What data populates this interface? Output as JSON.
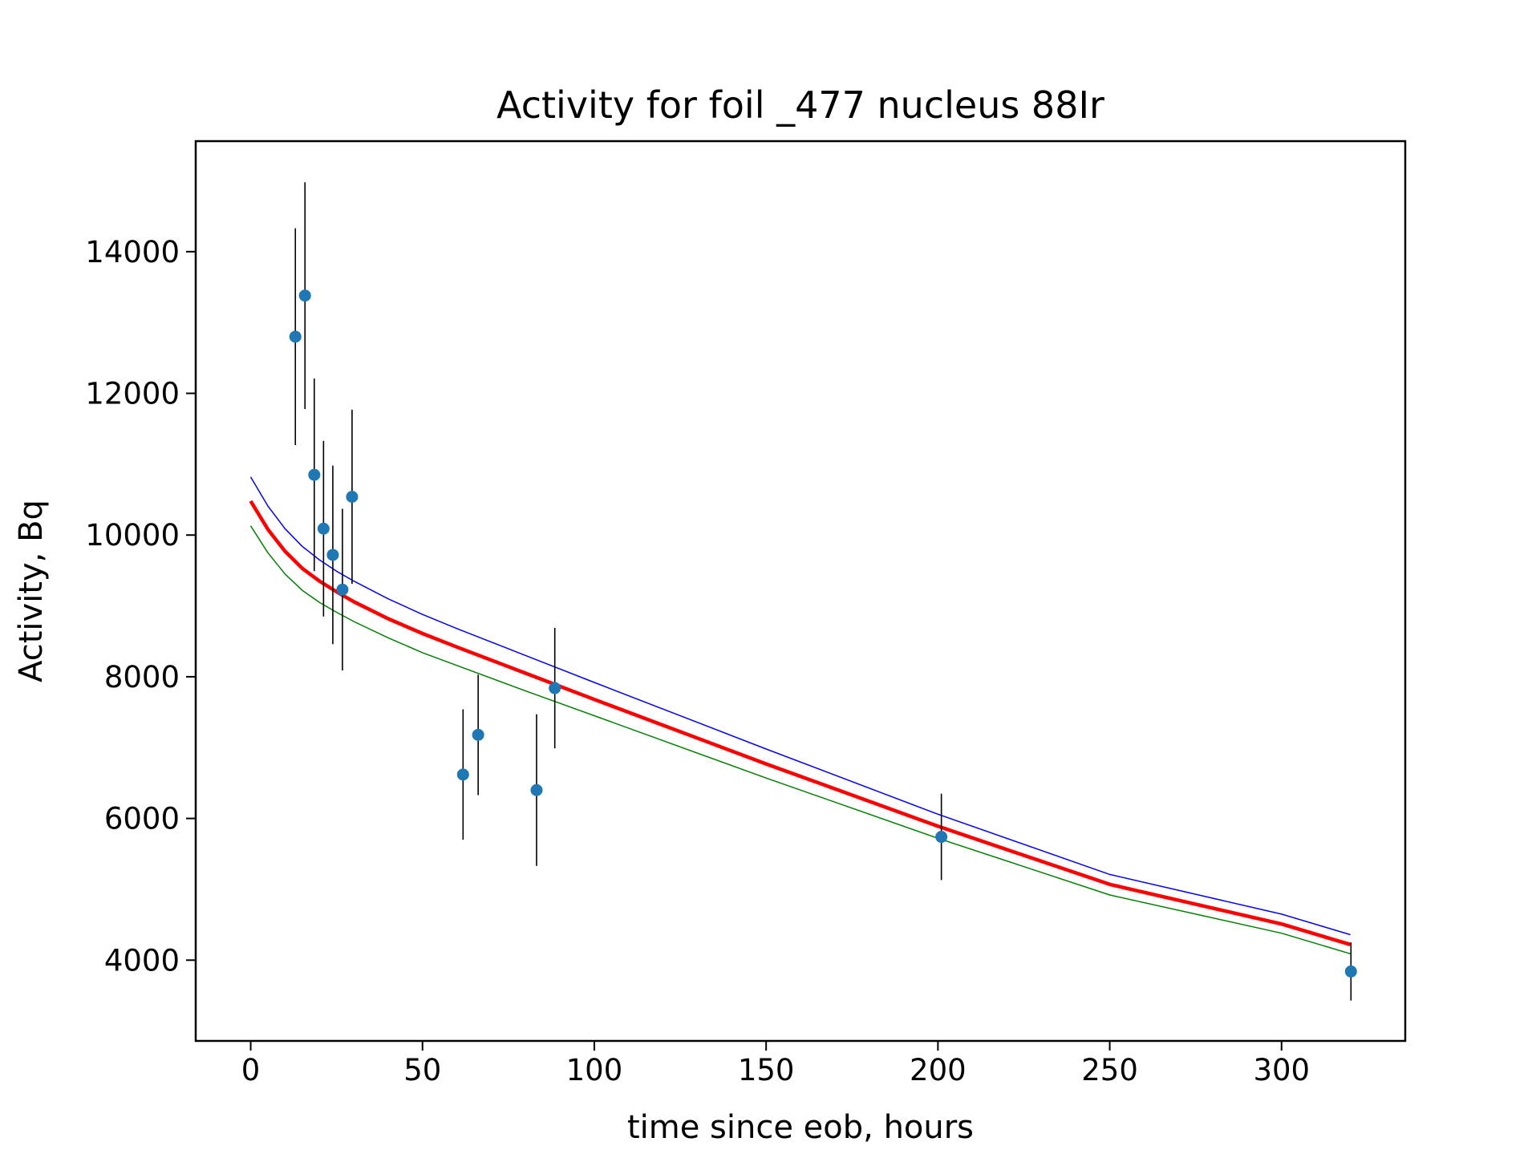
{
  "chart_data": {
    "type": "scatter",
    "title": "Activity for foil _477 nucleus 88Ir",
    "xlabel": "time since eob, hours",
    "ylabel": "Activity, Bq",
    "xlim": [
      -16,
      336
    ],
    "ylim": [
      2860,
      15560
    ],
    "xticks": [
      0,
      50,
      100,
      150,
      200,
      250,
      300
    ],
    "yticks": [
      4000,
      6000,
      8000,
      10000,
      12000,
      14000
    ],
    "grid": false,
    "legend": "none",
    "colors": {
      "points": "#1f77b4",
      "errorbars": "#000000",
      "fit": "#ff0000",
      "upper": "#0000ff",
      "lower": "#008000"
    },
    "points": [
      {
        "x": 13.0,
        "y": 12800,
        "err": 1530
      },
      {
        "x": 15.8,
        "y": 13380,
        "err": 1600
      },
      {
        "x": 18.5,
        "y": 10850,
        "err": 1360
      },
      {
        "x": 21.2,
        "y": 10090,
        "err": 1240
      },
      {
        "x": 23.9,
        "y": 9720,
        "err": 1260
      },
      {
        "x": 26.7,
        "y": 9230,
        "err": 1140
      },
      {
        "x": 29.5,
        "y": 10540,
        "err": 1230
      },
      {
        "x": 61.8,
        "y": 6620,
        "err": 920
      },
      {
        "x": 66.2,
        "y": 7180,
        "err": 850
      },
      {
        "x": 83.2,
        "y": 6400,
        "err": 1070
      },
      {
        "x": 88.5,
        "y": 7840,
        "err": 850
      },
      {
        "x": 201.0,
        "y": 5740,
        "err": 610
      },
      {
        "x": 320.2,
        "y": 3840,
        "err": 410
      }
    ],
    "series": [
      {
        "x": [
          0,
          5,
          10,
          15,
          20,
          25,
          30,
          40,
          50,
          60,
          80,
          100,
          150,
          200,
          250,
          300,
          320
        ],
        "values": [
          10820,
          10410,
          10090,
          9840,
          9650,
          9490,
          9350,
          9100,
          8880,
          8680,
          8300,
          7920,
          6980,
          6060,
          5210,
          4650,
          4360
        ]
      },
      {
        "x": [
          0,
          5,
          10,
          15,
          20,
          25,
          30,
          40,
          50,
          60,
          80,
          100,
          150,
          200,
          250,
          300,
          320
        ],
        "values": [
          10480,
          10080,
          9770,
          9530,
          9350,
          9200,
          9060,
          8820,
          8610,
          8420,
          8050,
          7680,
          6770,
          5890,
          5070,
          4510,
          4220
        ]
      },
      {
        "x": [
          0,
          5,
          10,
          15,
          20,
          25,
          30,
          40,
          50,
          60,
          80,
          100,
          150,
          200,
          250,
          300,
          320
        ],
        "values": [
          10130,
          9750,
          9450,
          9220,
          9050,
          8910,
          8780,
          8550,
          8340,
          8160,
          7800,
          7450,
          6570,
          5720,
          4920,
          4380,
          4090
        ]
      }
    ]
  }
}
